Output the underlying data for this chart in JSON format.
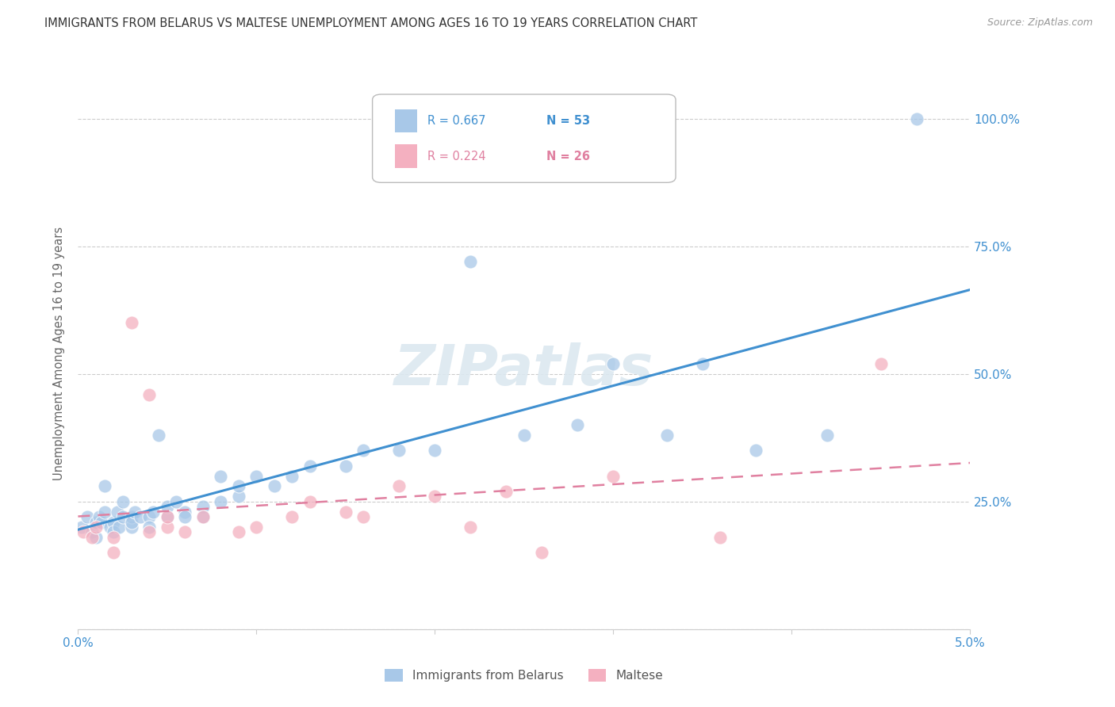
{
  "title": "IMMIGRANTS FROM BELARUS VS MALTESE UNEMPLOYMENT AMONG AGES 16 TO 19 YEARS CORRELATION CHART",
  "source": "Source: ZipAtlas.com",
  "ylabel": "Unemployment Among Ages 16 to 19 years",
  "legend_blue_R": "R = 0.667",
  "legend_blue_N": "N = 53",
  "legend_pink_R": "R = 0.224",
  "legend_pink_N": "N = 26",
  "legend_label_blue": "Immigrants from Belarus",
  "legend_label_pink": "Maltese",
  "blue_color": "#a8c8e8",
  "pink_color": "#f4b0c0",
  "blue_line_color": "#4090d0",
  "pink_line_color": "#e080a0",
  "text_blue": "#4090d0",
  "text_pink": "#e080a0",
  "grid_color": "#cccccc",
  "title_color": "#333333",
  "source_color": "#999999",
  "watermark_color": "#dce8f0",
  "blue_scatter_x": [
    0.0002,
    0.0005,
    0.0008,
    0.001,
    0.001,
    0.0012,
    0.0013,
    0.0015,
    0.0015,
    0.0018,
    0.002,
    0.002,
    0.0022,
    0.0023,
    0.0025,
    0.0025,
    0.003,
    0.003,
    0.003,
    0.0032,
    0.0035,
    0.004,
    0.004,
    0.0042,
    0.0045,
    0.005,
    0.005,
    0.0055,
    0.006,
    0.006,
    0.007,
    0.007,
    0.008,
    0.008,
    0.009,
    0.009,
    0.01,
    0.011,
    0.012,
    0.013,
    0.015,
    0.016,
    0.018,
    0.02,
    0.022,
    0.025,
    0.028,
    0.03,
    0.033,
    0.035,
    0.038,
    0.042,
    0.047
  ],
  "blue_scatter_y": [
    0.2,
    0.22,
    0.19,
    0.21,
    0.18,
    0.22,
    0.21,
    0.28,
    0.23,
    0.2,
    0.21,
    0.19,
    0.23,
    0.2,
    0.22,
    0.25,
    0.2,
    0.22,
    0.21,
    0.23,
    0.22,
    0.22,
    0.2,
    0.23,
    0.38,
    0.22,
    0.24,
    0.25,
    0.23,
    0.22,
    0.24,
    0.22,
    0.3,
    0.25,
    0.26,
    0.28,
    0.3,
    0.28,
    0.3,
    0.32,
    0.32,
    0.35,
    0.35,
    0.35,
    0.72,
    0.38,
    0.4,
    0.52,
    0.38,
    0.52,
    0.35,
    0.38,
    1.0
  ],
  "pink_scatter_x": [
    0.0003,
    0.0008,
    0.001,
    0.002,
    0.002,
    0.003,
    0.004,
    0.004,
    0.005,
    0.005,
    0.006,
    0.007,
    0.009,
    0.01,
    0.012,
    0.013,
    0.015,
    0.016,
    0.018,
    0.02,
    0.022,
    0.024,
    0.026,
    0.03,
    0.036,
    0.045
  ],
  "pink_scatter_y": [
    0.19,
    0.18,
    0.2,
    0.15,
    0.18,
    0.6,
    0.19,
    0.46,
    0.2,
    0.22,
    0.19,
    0.22,
    0.19,
    0.2,
    0.22,
    0.25,
    0.23,
    0.22,
    0.28,
    0.26,
    0.2,
    0.27,
    0.15,
    0.3,
    0.18,
    0.52
  ],
  "xmin": 0.0,
  "xmax": 0.05,
  "ymin": 0.0,
  "ymax": 1.08,
  "ytick_vals": [
    0.0,
    0.25,
    0.5,
    0.75,
    1.0
  ],
  "ytick_labels": [
    "",
    "25.0%",
    "50.0%",
    "75.0%",
    "100.0%"
  ],
  "xtick_vals": [
    0.0,
    0.01,
    0.02,
    0.03,
    0.04,
    0.05
  ],
  "xtick_labels": [
    "0.0%",
    "",
    "",
    "",
    "",
    "5.0%"
  ]
}
